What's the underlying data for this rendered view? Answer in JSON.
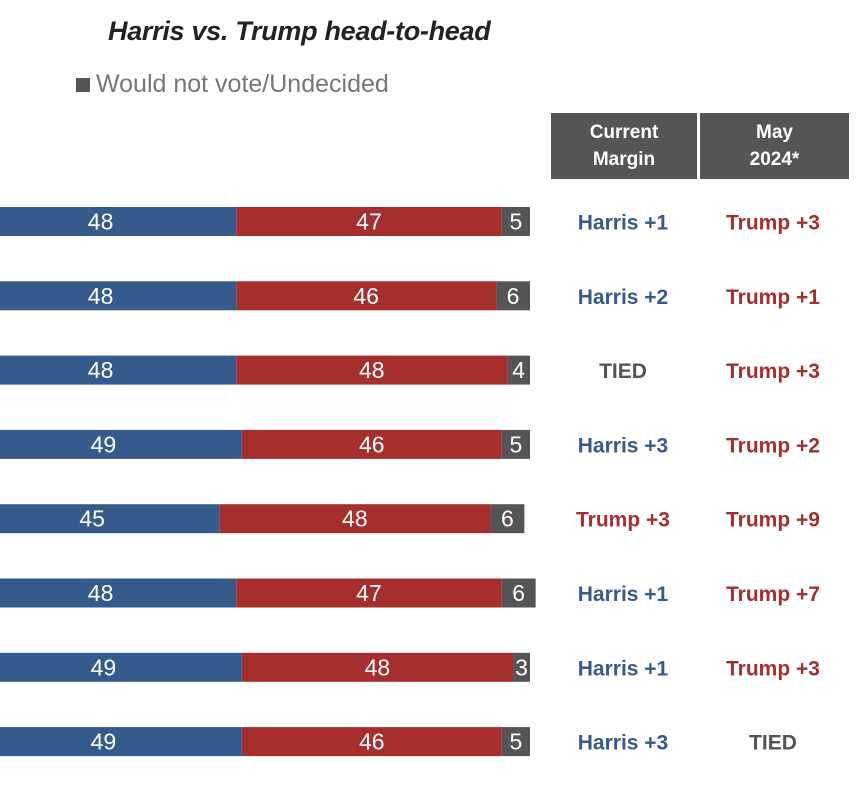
{
  "chart_data": {
    "type": "bar",
    "orientation": "horizontal-stacked",
    "title": "Harris vs. Trump head-to-head",
    "legend": [
      {
        "name": "Would not vote/Undecided",
        "color": "#555555"
      }
    ],
    "colors": {
      "harris": "#355b8c",
      "trump": "#a62f2d",
      "undecided": "#555555",
      "tied": "#555555"
    },
    "xlim": [
      0,
      100
    ],
    "columns": [
      "Current\nMargin",
      "May\n2024*"
    ],
    "rows": [
      {
        "harris": 48,
        "trump": 47,
        "undecided": 5,
        "current": "Harris +1",
        "may": "Trump +3"
      },
      {
        "harris": 48,
        "trump": 46,
        "undecided": 6,
        "current": "Harris +2",
        "may": "Trump +1"
      },
      {
        "harris": 48,
        "trump": 48,
        "undecided": 4,
        "current": "TIED",
        "may": "Trump +3"
      },
      {
        "harris": 49,
        "trump": 46,
        "undecided": 5,
        "current": "Harris +3",
        "may": "Trump +2"
      },
      {
        "harris": 45,
        "trump": 48,
        "undecided": 6,
        "current": "Trump +3",
        "may": "Trump +9"
      },
      {
        "harris": 48,
        "trump": 47,
        "undecided": 6,
        "current": "Harris +1",
        "may": "Trump +7"
      },
      {
        "harris": 49,
        "trump": 48,
        "undecided": 3,
        "current": "Harris +1",
        "may": "Trump +3"
      },
      {
        "harris": 49,
        "trump": 46,
        "undecided": 5,
        "current": "Harris +3",
        "may": "TIED"
      }
    ]
  }
}
